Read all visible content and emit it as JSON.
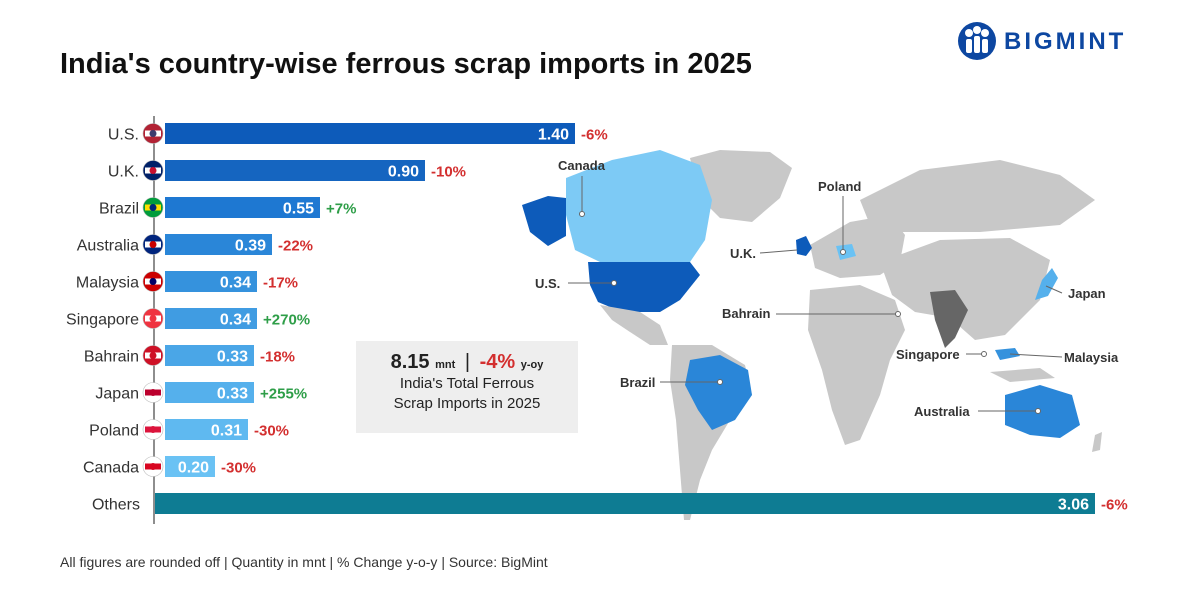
{
  "brand": {
    "name": "BIGMINT"
  },
  "title": "India's country-wise ferrous scrap imports in 2025",
  "chart_data": {
    "type": "bar",
    "orientation": "horizontal",
    "title": "India's country-wise ferrous scrap imports in 2025",
    "unit": "mnt",
    "categories": [
      "U.S.",
      "U.K.",
      "Brazil",
      "Australia",
      "Malaysia",
      "Singapore",
      "Bahrain",
      "Japan",
      "Poland",
      "Canada",
      "Others"
    ],
    "values": [
      1.4,
      0.9,
      0.55,
      0.39,
      0.34,
      0.34,
      0.33,
      0.33,
      0.31,
      0.2,
      3.06
    ],
    "value_labels": [
      "1.40",
      "0.90",
      "0.55",
      "0.39",
      "0.34",
      "0.34",
      "0.33",
      "0.33",
      "0.31",
      "0.20",
      "3.06"
    ],
    "changes": [
      "-6%",
      "-10%",
      "+7%",
      "-22%",
      "-17%",
      "+270%",
      "-18%",
      "+255%",
      "-30%",
      "-30%",
      "-6%"
    ],
    "bar_colors": [
      "#0d5bba",
      "#1565c0",
      "#1e78d2",
      "#2a86d8",
      "#3592dd",
      "#409ce2",
      "#4aa6e7",
      "#55b0ec",
      "#5fb9f0",
      "#6ac2f4",
      "#0e7c93"
    ],
    "legend": "none",
    "grid": false
  },
  "colors": {
    "positive": "#2e9e48",
    "negative": "#d32f2f"
  },
  "summary": {
    "total": "8.15",
    "unit": "mnt",
    "separator": "|",
    "change": "-4%",
    "change_suffix": "y-oy",
    "caption_line1": "India's Total Ferrous",
    "caption_line2": "Scrap Imports in 2025"
  },
  "map": {
    "labels": [
      "Canada",
      "Poland",
      "U.K.",
      "U.S.",
      "Japan",
      "Bahrain",
      "Singapore",
      "Malaysia",
      "Brazil",
      "Australia"
    ]
  },
  "footer": "All figures are rounded off  |  Quantity in mnt  |  % Change y-o-y  |  Source: BigMint"
}
